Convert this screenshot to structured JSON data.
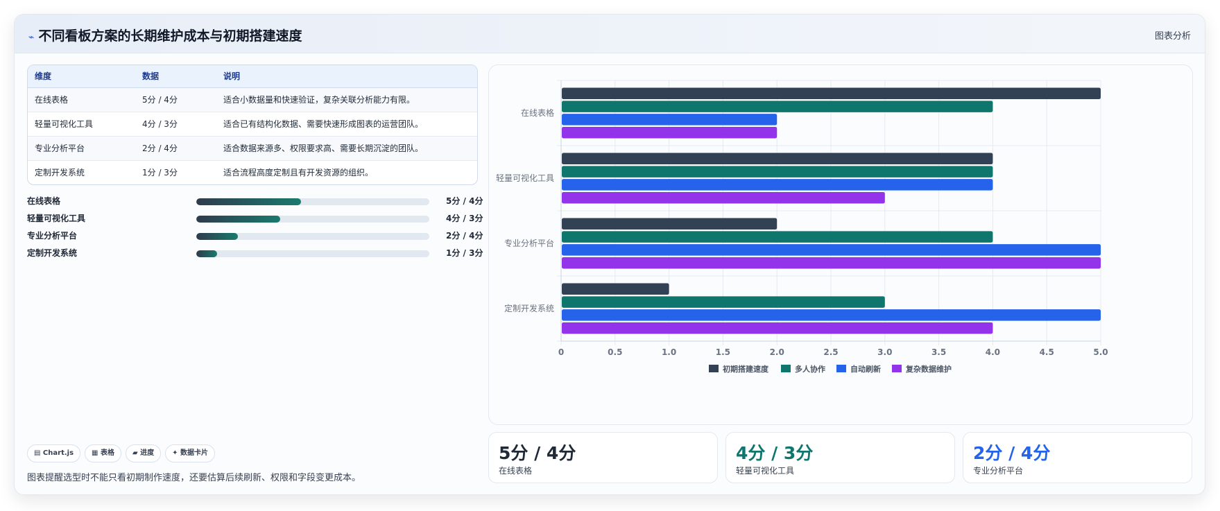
{
  "header": {
    "title": "不同看板方案的长期维护成本与初期搭建速度",
    "title_icon": "⌁",
    "tag": "图表分析"
  },
  "table": {
    "headers": [
      "维度",
      "数据",
      "说明"
    ],
    "rows": [
      [
        "在线表格",
        "5分 / 4分",
        "适合小数据量和快速验证，复杂关联分析能力有限。"
      ],
      [
        "轻量可视化工具",
        "4分 / 3分",
        "适合已有结构化数据、需要快速形成图表的运营团队。"
      ],
      [
        "专业分析平台",
        "2分 / 4分",
        "适合数据来源多、权限要求高、需要长期沉淀的团队。"
      ],
      [
        "定制开发系统",
        "1分 / 3分",
        "适合流程高度定制且有开发资源的组织。"
      ]
    ]
  },
  "progress": [
    {
      "label": "在线表格",
      "value": "5分 / 4分",
      "fraction": 0.45
    },
    {
      "label": "轻量可视化工具",
      "value": "4分 / 3分",
      "fraction": 0.36
    },
    {
      "label": "专业分析平台",
      "value": "2分 / 4分",
      "fraction": 0.18
    },
    {
      "label": "定制开发系统",
      "value": "1分 / 3分",
      "fraction": 0.09
    }
  ],
  "chips": [
    "▤ Chart.js",
    "▦ 表格",
    "▰ 进度",
    "✦ 数据卡片"
  ],
  "note": "图表提醒选型时不能只看初期制作速度，还要估算后续刷新、权限和字段变更成本。",
  "stats": [
    {
      "value": "5分 / 4分",
      "label": "在线表格",
      "color": "#1f2937"
    },
    {
      "value": "4分 / 3分",
      "label": "轻量可视化工具",
      "color": "#0f766e"
    },
    {
      "value": "2分 / 4分",
      "label": "专业分析平台",
      "color": "#2563eb"
    }
  ],
  "chart_data": {
    "type": "bar",
    "orientation": "horizontal",
    "categories": [
      "在线表格",
      "轻量可视化工具",
      "专业分析平台",
      "定制开发系统"
    ],
    "series": [
      {
        "name": "初期搭建速度",
        "color": "#334155",
        "values": [
          5,
          4,
          2,
          1
        ]
      },
      {
        "name": "多人协作",
        "color": "#0f766e",
        "values": [
          4,
          4,
          4,
          3
        ]
      },
      {
        "name": "自动刷新",
        "color": "#2563eb",
        "values": [
          2,
          4,
          5,
          5
        ]
      },
      {
        "name": "复杂数据维护",
        "color": "#9333ea",
        "values": [
          2,
          3,
          5,
          4
        ]
      }
    ],
    "xlim": [
      0,
      5
    ],
    "xticks": [
      "0",
      "0.5",
      "1.0",
      "1.5",
      "2.0",
      "2.5",
      "3.0",
      "3.5",
      "4.0",
      "4.5",
      "5.0"
    ],
    "grid": true,
    "legend": "bottom"
  }
}
